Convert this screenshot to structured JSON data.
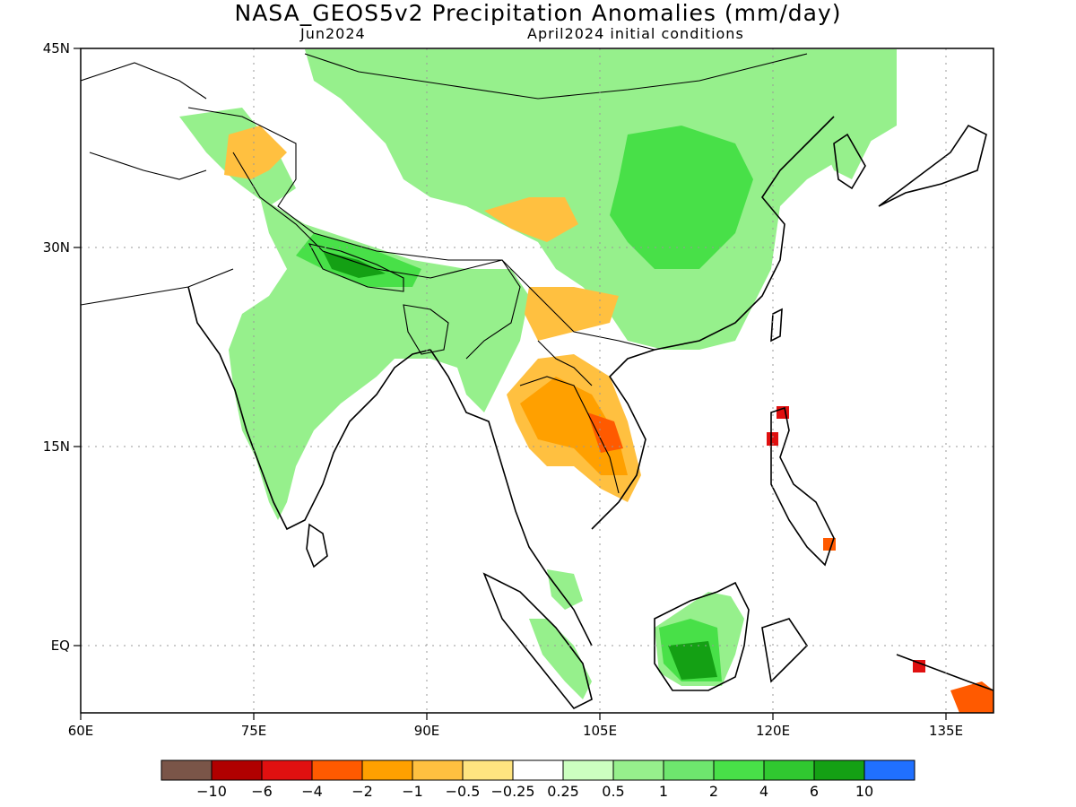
{
  "title": "NASA_GEOS5v2 Precipitation Anomalies (mm/day)",
  "subtitle_left": "Jun2024",
  "subtitle_right": "April2024 initial conditions",
  "axes": {
    "lon_ticks": [
      "60E",
      "75E",
      "90E",
      "105E",
      "120E",
      "135E"
    ],
    "lat_ticks": [
      "45N",
      "30N",
      "15N",
      "EQ"
    ]
  },
  "colorbar": {
    "colors": [
      "#7a5548",
      "#b00000",
      "#e01010",
      "#ff5a00",
      "#ffa000",
      "#ffc040",
      "#ffe480",
      "#ffffff",
      "#ccffc0",
      "#96f08c",
      "#6ee66e",
      "#48e048",
      "#30c830",
      "#14a014",
      "#2070ff"
    ],
    "labels": [
      "−10",
      "−6",
      "−4",
      "−2",
      "−1",
      "−0.5",
      "−0.25",
      "0.25",
      "0.5",
      "1",
      "2",
      "4",
      "6",
      "10"
    ]
  }
}
